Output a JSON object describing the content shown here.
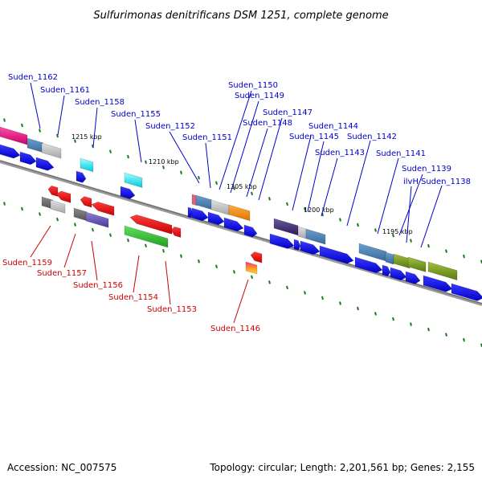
{
  "title": "Sulfurimonas denitrificans DSM 1251, complete genome",
  "footer": {
    "accession": "Accession: NC_007575",
    "summary": "Topology: circular; Length: 2,201,561 bp; Genes: 2,155"
  },
  "colors": {
    "forward_label": "#0000cc",
    "reverse_label": "#cc0000",
    "forward_gene": "#0000ee",
    "reverse_gene": "#ee0000",
    "backbone": "#888888",
    "tick": "#1a7a1a"
  },
  "scale_labels": [
    "1215 kbp",
    "1210 kbp",
    "1205 kbp",
    "1200 kbp",
    "1195 kbp"
  ],
  "forward_labels": [
    "Suden_1162",
    "Suden_1161",
    "Suden_1158",
    "Suden_1155",
    "Suden_1152",
    "Suden_1151",
    "Suden_1150",
    "Suden_1149",
    "Suden_1148",
    "Suden_1147",
    "Suden_1144",
    "Suden_1145",
    "Suden_1143",
    "Suden_1142",
    "Suden_1141",
    "Suden_1139",
    "ilvH",
    "Suden_1138"
  ],
  "reverse_labels": [
    "Suden_1159",
    "Suden_1157",
    "Suden_1156",
    "Suden_1154",
    "Suden_1153",
    "Suden_1146"
  ]
}
